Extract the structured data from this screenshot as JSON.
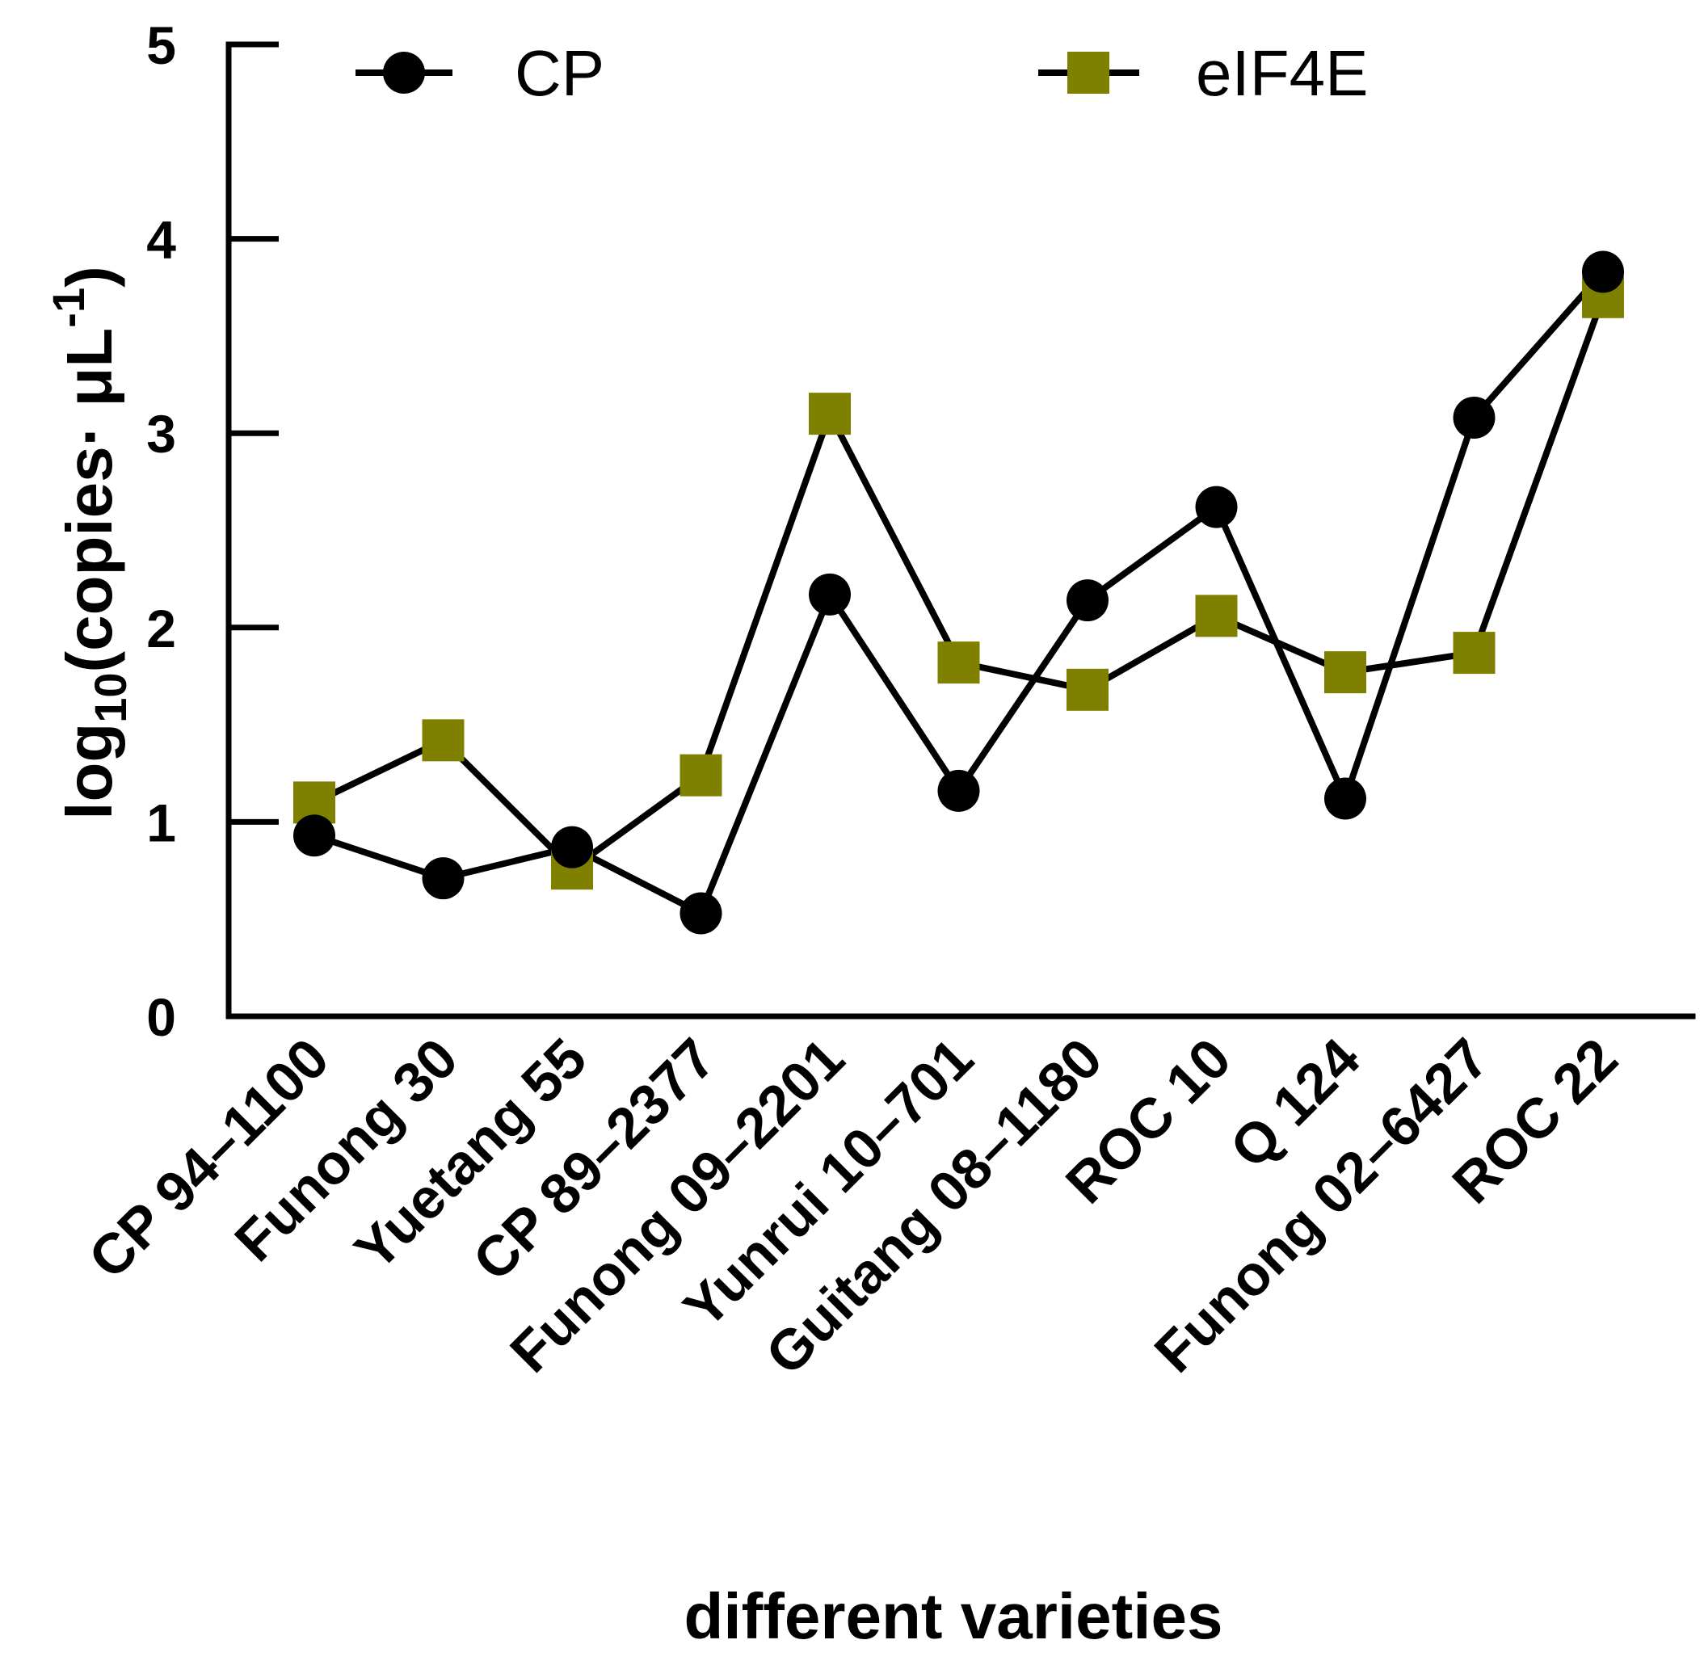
{
  "chart_data": {
    "type": "line",
    "categories": [
      "CP 94–1100",
      "Funong 30",
      "Yuetang 55",
      "CP 89–2377",
      "Funong 09–2201",
      "Yunrui 10–701",
      "Guitang 08–1180",
      "ROC 10",
      "Q 124",
      "Funong 02–6427",
      "ROC 22"
    ],
    "series": [
      {
        "name": "CP",
        "marker": "circle",
        "color": "#000000",
        "values": [
          0.93,
          0.71,
          0.87,
          0.53,
          2.17,
          1.16,
          2.14,
          2.62,
          1.12,
          3.08,
          3.83
        ]
      },
      {
        "name": "eIF4E",
        "marker": "square",
        "color": "#808000",
        "values": [
          1.1,
          1.42,
          0.76,
          1.24,
          3.1,
          1.82,
          1.68,
          2.06,
          1.77,
          1.87,
          3.7
        ]
      }
    ],
    "xlabel": "different varieties",
    "ylabel": {
      "prefix": "log",
      "subscript": "10",
      "main": "(copies· μL",
      "superscript": "-1",
      "suffix": ")"
    },
    "ylim": [
      0,
      5
    ],
    "yticks": [
      "0",
      "1",
      "2",
      "3",
      "4",
      "5"
    ],
    "grid": false,
    "legend_position": "top"
  }
}
